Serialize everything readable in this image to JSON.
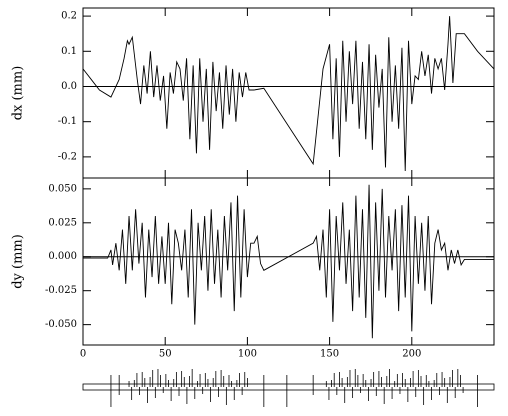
{
  "chart_data": [
    {
      "type": "line",
      "y_label": "dx (mm)",
      "color": "#000000",
      "zero_line": true,
      "xlim": [
        0,
        250
      ],
      "ylim": [
        -0.26,
        0.223
      ],
      "yticks": [
        -0.2,
        -0.1,
        {
          "value": 0,
          "label": "0.0"
        },
        0.1,
        0.2
      ],
      "x": [
        0,
        5,
        10,
        17,
        22,
        25,
        27,
        28,
        30,
        33,
        35,
        37,
        39,
        41,
        43,
        45,
        47,
        49,
        51,
        53,
        55,
        57,
        59,
        61,
        63,
        65,
        67,
        69,
        71,
        73,
        75,
        77,
        79,
        81,
        83,
        85,
        87,
        89,
        91,
        93,
        95,
        97,
        99,
        101,
        104,
        110,
        140,
        146,
        150,
        152,
        154,
        156,
        158,
        160,
        162,
        164,
        166,
        168,
        170,
        172,
        174,
        176,
        178,
        180,
        182,
        184,
        186,
        188,
        190,
        192,
        194,
        196,
        198,
        200,
        202,
        204,
        206,
        208,
        210,
        212,
        214,
        216,
        218,
        220,
        222,
        223,
        225,
        227,
        232,
        240,
        250
      ],
      "series": [
        {
          "values": [
            0.05,
            0.02,
            -0.01,
            -0.03,
            0.02,
            0.08,
            0.13,
            0.12,
            0.14,
            0.02,
            -0.05,
            0.06,
            -0.02,
            0.1,
            -0.03,
            0.06,
            -0.04,
            0.03,
            -0.12,
            0.04,
            -0.02,
            0.07,
            0.05,
            -0.04,
            0.08,
            -0.15,
            0.06,
            -0.19,
            0.08,
            -0.1,
            0.05,
            -0.18,
            0.07,
            -0.07,
            0.04,
            -0.12,
            0.06,
            -0.08,
            0.05,
            -0.1,
            0.04,
            -0.03,
            0.04,
            -0.01,
            -0.01,
            -0.005,
            -0.22,
            0.05,
            0.12,
            -0.15,
            0.08,
            -0.2,
            0.13,
            -0.1,
            0.1,
            -0.05,
            0.13,
            -0.12,
            0.07,
            -0.15,
            0.12,
            -0.18,
            0.09,
            -0.06,
            0.05,
            -0.23,
            0.14,
            -0.1,
            0.06,
            -0.12,
            0.11,
            -0.24,
            0.13,
            -0.05,
            0.03,
            0.02,
            0.1,
            0.03,
            0.09,
            -0.02,
            0.08,
            0.05,
            0.08,
            -0.01,
            0.12,
            0.2,
            0.01,
            0.15,
            0.15,
            0.1,
            0.05
          ]
        }
      ]
    },
    {
      "type": "line",
      "y_label": "dy (mm)",
      "color": "#000000",
      "zero_line": true,
      "xlim": [
        0,
        250
      ],
      "ylim": [
        -0.065,
        0.058
      ],
      "xticks": [
        0,
        50,
        100,
        150,
        200
      ],
      "yticks": [
        {
          "value": -0.05,
          "label": "-0.050"
        },
        {
          "value": -0.025,
          "label": "-0.025"
        },
        {
          "value": 0,
          "label": "0.000"
        },
        {
          "value": 0.025,
          "label": "0.025"
        },
        {
          "value": 0.05,
          "label": "0.050"
        }
      ],
      "x": [
        0,
        15,
        17,
        18,
        20,
        22,
        24,
        26,
        28,
        30,
        32,
        34,
        36,
        38,
        40,
        42,
        44,
        46,
        48,
        50,
        52,
        54,
        56,
        58,
        60,
        62,
        64,
        66,
        68,
        70,
        72,
        74,
        76,
        78,
        80,
        82,
        84,
        86,
        88,
        90,
        92,
        94,
        96,
        98,
        100,
        102,
        104,
        106,
        108,
        110,
        140,
        142,
        144,
        146,
        148,
        150,
        152,
        154,
        156,
        158,
        160,
        162,
        164,
        166,
        168,
        170,
        172,
        174,
        176,
        178,
        180,
        182,
        184,
        186,
        188,
        190,
        192,
        194,
        196,
        198,
        200,
        202,
        204,
        206,
        208,
        210,
        212,
        214,
        216,
        218,
        220,
        222,
        224,
        226,
        228,
        230,
        232,
        250
      ],
      "series": [
        {
          "values": [
            -0.001,
            -0.001,
            0.005,
            -0.006,
            0.01,
            -0.01,
            0.02,
            -0.02,
            0.03,
            -0.01,
            0.035,
            -0.005,
            0.025,
            -0.03,
            0.02,
            -0.015,
            0.03,
            -0.02,
            0.015,
            -0.02,
            0.025,
            -0.035,
            0.02,
            0.01,
            -0.01,
            0.02,
            -0.03,
            0.035,
            -0.05,
            0.025,
            -0.01,
            0.03,
            -0.025,
            0.035,
            -0.02,
            0.02,
            -0.03,
            0.03,
            -0.01,
            0.04,
            -0.04,
            0.045,
            -0.03,
            0.035,
            -0.015,
            0.01,
            0.01,
            0.015,
            -0.005,
            -0.01,
            0.01,
            0.015,
            -0.01,
            0.02,
            -0.03,
            0.035,
            -0.048,
            0.03,
            -0.01,
            0.04,
            -0.02,
            0.02,
            -0.04,
            0.045,
            -0.03,
            0.035,
            -0.045,
            0.053,
            -0.06,
            0.04,
            -0.025,
            0.05,
            -0.03,
            0.03,
            -0.01,
            0.035,
            -0.04,
            0.038,
            -0.03,
            0.045,
            -0.055,
            0.03,
            -0.02,
            0.025,
            -0.025,
            0.03,
            -0.035,
            0.01,
            0.02,
            0.005,
            0.01,
            -0.01,
            0.005,
            -0.005,
            0.005,
            -0.006,
            -0.002,
            -0.002
          ]
        }
      ]
    }
  ]
}
